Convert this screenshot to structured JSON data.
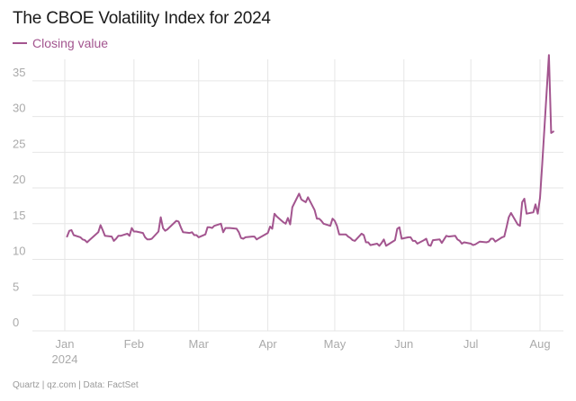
{
  "title": "The CBOE Volatility Index for 2024",
  "source": "Quartz | qz.com | Data: FactSet",
  "colors": {
    "series": "#a3558f",
    "grid": "#e6e6e6",
    "tick_text": "#aaaaaa"
  },
  "chart_data": {
    "type": "line",
    "title": "The CBOE Volatility Index for 2024",
    "xlabel": "",
    "ylabel": "",
    "ylim": [
      0,
      38
    ],
    "yticks": [
      0,
      5,
      10,
      15,
      20,
      25,
      30,
      35
    ],
    "xticks": [
      {
        "date": "2024-01-01",
        "label": "Jan",
        "sublabel": "2024"
      },
      {
        "date": "2024-02-01",
        "label": "Feb"
      },
      {
        "date": "2024-03-01",
        "label": "Mar"
      },
      {
        "date": "2024-04-01",
        "label": "Apr"
      },
      {
        "date": "2024-05-01",
        "label": "May"
      },
      {
        "date": "2024-06-01",
        "label": "Jun"
      },
      {
        "date": "2024-07-01",
        "label": "Jul"
      },
      {
        "date": "2024-08-01",
        "label": "Aug"
      }
    ],
    "grid": true,
    "legend": "top-left",
    "series": [
      {
        "name": "Closing value",
        "color": "#a3558f",
        "points": [
          [
            "2024-01-02",
            13.2
          ],
          [
            "2024-01-03",
            14.0
          ],
          [
            "2024-01-04",
            14.1
          ],
          [
            "2024-01-05",
            13.4
          ],
          [
            "2024-01-08",
            13.1
          ],
          [
            "2024-01-09",
            12.8
          ],
          [
            "2024-01-10",
            12.7
          ],
          [
            "2024-01-11",
            12.4
          ],
          [
            "2024-01-12",
            12.7
          ],
          [
            "2024-01-16",
            13.8
          ],
          [
            "2024-01-17",
            14.8
          ],
          [
            "2024-01-18",
            14.1
          ],
          [
            "2024-01-19",
            13.3
          ],
          [
            "2024-01-22",
            13.2
          ],
          [
            "2024-01-23",
            12.6
          ],
          [
            "2024-01-24",
            12.9
          ],
          [
            "2024-01-25",
            13.3
          ],
          [
            "2024-01-26",
            13.3
          ],
          [
            "2024-01-29",
            13.6
          ],
          [
            "2024-01-30",
            13.3
          ],
          [
            "2024-01-31",
            14.4
          ],
          [
            "2024-02-01",
            13.9
          ],
          [
            "2024-02-02",
            13.9
          ],
          [
            "2024-02-05",
            13.7
          ],
          [
            "2024-02-06",
            13.1
          ],
          [
            "2024-02-07",
            12.8
          ],
          [
            "2024-02-08",
            12.8
          ],
          [
            "2024-02-09",
            12.9
          ],
          [
            "2024-02-12",
            13.9
          ],
          [
            "2024-02-13",
            15.9
          ],
          [
            "2024-02-14",
            14.4
          ],
          [
            "2024-02-15",
            14.0
          ],
          [
            "2024-02-16",
            14.2
          ],
          [
            "2024-02-20",
            15.4
          ],
          [
            "2024-02-21",
            15.3
          ],
          [
            "2024-02-22",
            14.5
          ],
          [
            "2024-02-23",
            13.8
          ],
          [
            "2024-02-26",
            13.7
          ],
          [
            "2024-02-27",
            13.8
          ],
          [
            "2024-02-28",
            13.4
          ],
          [
            "2024-02-29",
            13.4
          ],
          [
            "2024-03-01",
            13.1
          ],
          [
            "2024-03-04",
            13.5
          ],
          [
            "2024-03-05",
            14.5
          ],
          [
            "2024-03-06",
            14.5
          ],
          [
            "2024-03-07",
            14.4
          ],
          [
            "2024-03-08",
            14.7
          ],
          [
            "2024-03-11",
            15.0
          ],
          [
            "2024-03-12",
            13.8
          ],
          [
            "2024-03-13",
            14.4
          ],
          [
            "2024-03-14",
            14.4
          ],
          [
            "2024-03-15",
            14.4
          ],
          [
            "2024-03-18",
            14.3
          ],
          [
            "2024-03-19",
            13.8
          ],
          [
            "2024-03-20",
            13.0
          ],
          [
            "2024-03-21",
            12.9
          ],
          [
            "2024-03-22",
            13.1
          ],
          [
            "2024-03-25",
            13.2
          ],
          [
            "2024-03-26",
            13.2
          ],
          [
            "2024-03-27",
            12.8
          ],
          [
            "2024-03-28",
            13.0
          ],
          [
            "2024-04-01",
            13.7
          ],
          [
            "2024-04-02",
            14.6
          ],
          [
            "2024-04-03",
            14.3
          ],
          [
            "2024-04-04",
            16.4
          ],
          [
            "2024-04-05",
            16.0
          ],
          [
            "2024-04-08",
            15.2
          ],
          [
            "2024-04-09",
            15.0
          ],
          [
            "2024-04-10",
            15.8
          ],
          [
            "2024-04-11",
            14.9
          ],
          [
            "2024-04-12",
            17.3
          ],
          [
            "2024-04-15",
            19.2
          ],
          [
            "2024-04-16",
            18.4
          ],
          [
            "2024-04-17",
            18.2
          ],
          [
            "2024-04-18",
            18.0
          ],
          [
            "2024-04-19",
            18.7
          ],
          [
            "2024-04-22",
            16.9
          ],
          [
            "2024-04-23",
            15.7
          ],
          [
            "2024-04-24",
            15.7
          ],
          [
            "2024-04-25",
            15.4
          ],
          [
            "2024-04-26",
            15.0
          ],
          [
            "2024-04-29",
            14.7
          ],
          [
            "2024-04-30",
            15.7
          ],
          [
            "2024-05-01",
            15.4
          ],
          [
            "2024-05-02",
            14.7
          ],
          [
            "2024-05-03",
            13.5
          ],
          [
            "2024-05-06",
            13.5
          ],
          [
            "2024-05-07",
            13.2
          ],
          [
            "2024-05-08",
            13.0
          ],
          [
            "2024-05-09",
            12.7
          ],
          [
            "2024-05-10",
            12.6
          ],
          [
            "2024-05-13",
            13.6
          ],
          [
            "2024-05-14",
            13.4
          ],
          [
            "2024-05-15",
            12.4
          ],
          [
            "2024-05-16",
            12.4
          ],
          [
            "2024-05-17",
            12.0
          ],
          [
            "2024-05-20",
            12.2
          ],
          [
            "2024-05-21",
            11.9
          ],
          [
            "2024-05-22",
            12.3
          ],
          [
            "2024-05-23",
            12.8
          ],
          [
            "2024-05-24",
            11.9
          ],
          [
            "2024-05-28",
            12.7
          ],
          [
            "2024-05-29",
            14.3
          ],
          [
            "2024-05-30",
            14.5
          ],
          [
            "2024-05-31",
            12.9
          ],
          [
            "2024-06-03",
            13.1
          ],
          [
            "2024-06-04",
            13.1
          ],
          [
            "2024-06-05",
            12.6
          ],
          [
            "2024-06-06",
            12.6
          ],
          [
            "2024-06-07",
            12.2
          ],
          [
            "2024-06-10",
            12.7
          ],
          [
            "2024-06-11",
            12.9
          ],
          [
            "2024-06-12",
            12.0
          ],
          [
            "2024-06-13",
            11.9
          ],
          [
            "2024-06-14",
            12.7
          ],
          [
            "2024-06-17",
            12.8
          ],
          [
            "2024-06-18",
            12.3
          ],
          [
            "2024-06-20",
            13.3
          ],
          [
            "2024-06-21",
            13.2
          ],
          [
            "2024-06-24",
            13.3
          ],
          [
            "2024-06-25",
            12.8
          ],
          [
            "2024-06-26",
            12.6
          ],
          [
            "2024-06-27",
            12.2
          ],
          [
            "2024-06-28",
            12.4
          ],
          [
            "2024-07-01",
            12.2
          ],
          [
            "2024-07-02",
            12.0
          ],
          [
            "2024-07-03",
            12.1
          ],
          [
            "2024-07-05",
            12.5
          ],
          [
            "2024-07-08",
            12.4
          ],
          [
            "2024-07-09",
            12.5
          ],
          [
            "2024-07-10",
            12.9
          ],
          [
            "2024-07-11",
            12.9
          ],
          [
            "2024-07-12",
            12.5
          ],
          [
            "2024-07-15",
            13.1
          ],
          [
            "2024-07-16",
            13.2
          ],
          [
            "2024-07-17",
            14.5
          ],
          [
            "2024-07-18",
            15.9
          ],
          [
            "2024-07-19",
            16.5
          ],
          [
            "2024-07-22",
            14.9
          ],
          [
            "2024-07-23",
            14.7
          ],
          [
            "2024-07-24",
            18.0
          ],
          [
            "2024-07-25",
            18.5
          ],
          [
            "2024-07-26",
            16.4
          ],
          [
            "2024-07-29",
            16.6
          ],
          [
            "2024-07-30",
            17.7
          ],
          [
            "2024-07-31",
            16.4
          ],
          [
            "2024-08-01",
            18.6
          ],
          [
            "2024-08-02",
            23.4
          ],
          [
            "2024-08-05",
            38.6
          ],
          [
            "2024-08-06",
            27.7
          ],
          [
            "2024-08-07",
            27.9
          ]
        ]
      }
    ]
  }
}
